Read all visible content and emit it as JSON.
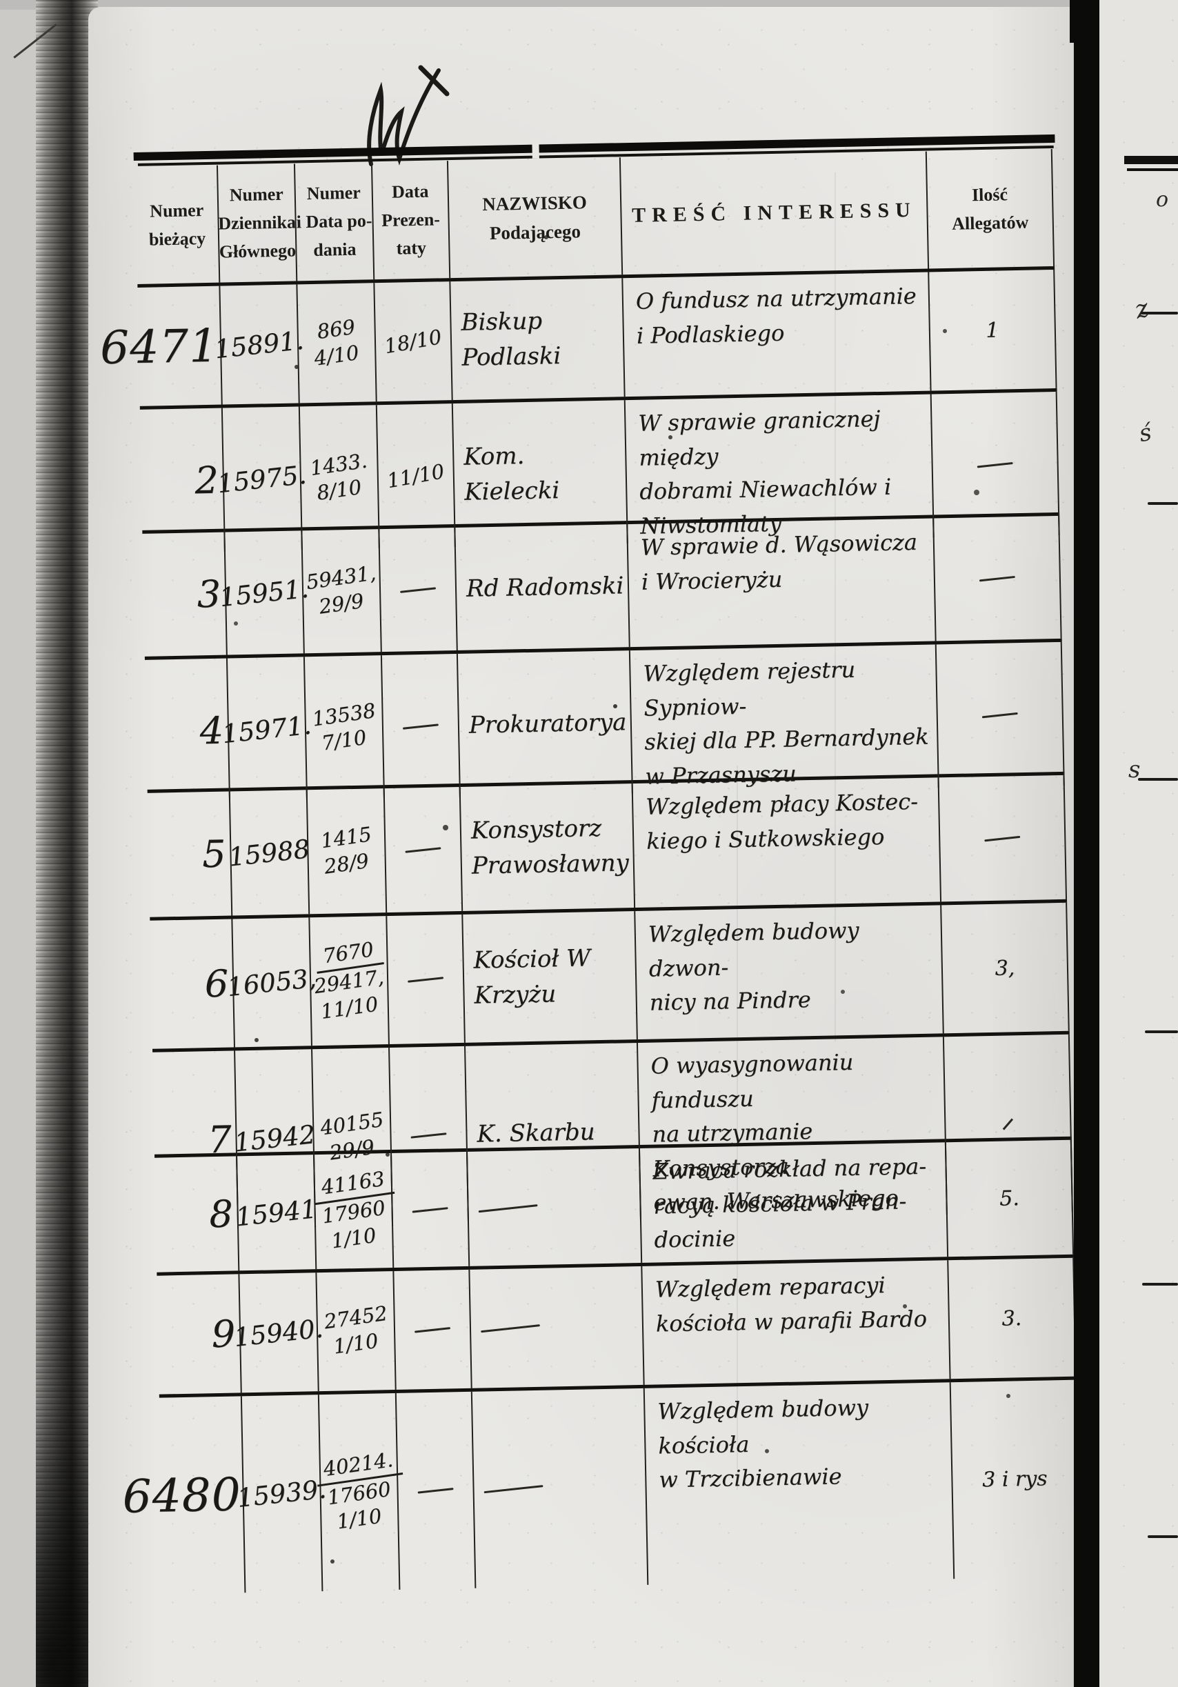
{
  "marks": {
    "paraph_mark": "handwritten-W-flourish"
  },
  "table": {
    "header": {
      "c1": [
        "Numer",
        "bieżący"
      ],
      "c2": [
        "Numer",
        "Dziennika",
        "Głównego"
      ],
      "c3": [
        "Numer",
        "i Data po-",
        "dania"
      ],
      "c4": [
        "Data",
        "Prezen-",
        "taty"
      ],
      "c5": [
        "NAZWISKO",
        "Podającego"
      ],
      "c6": [
        "TREŚĆ INTERESSU"
      ],
      "c7": [
        "Ilość",
        "Allegatów"
      ]
    },
    "rows": [
      {
        "no": "6471",
        "dziennik": "15891.",
        "podanie": [
          "869",
          "4/10"
        ],
        "prezentata": "18/10",
        "nazwisko": [
          "Biskup",
          "Podlaski"
        ],
        "tresc": [
          "O fundusz na utrzymanie",
          "i Podlaskiego"
        ],
        "alleg": "1"
      },
      {
        "no": "2",
        "dziennik": "15975.",
        "podanie": [
          "1433.",
          "8/10"
        ],
        "prezentata": "11/10",
        "nazwisko": [
          "Kom.",
          "Kielecki"
        ],
        "tresc": [
          "W sprawie granicznej między",
          "dobrami Niewachlów i",
          "Niwstomlaty"
        ],
        "alleg": "—"
      },
      {
        "no": "3",
        "dziennik": "15951.",
        "podanie": [
          "59431,",
          "29/9"
        ],
        "prezentata": "—",
        "nazwisko": [
          "Rd Radomski"
        ],
        "tresc": [
          "W sprawie d. Wąsowicza",
          "i Wrocieryżu"
        ],
        "alleg": "—"
      },
      {
        "no": "4",
        "dziennik": "15971.",
        "podanie": [
          "13538",
          "7/10"
        ],
        "prezentata": "—",
        "nazwisko": [
          "Prokuratorya"
        ],
        "tresc": [
          "Względem rejestru Sypniow-",
          "skiej dla PP. Bernardynek",
          "w Przasnyszu"
        ],
        "alleg": "—"
      },
      {
        "no": "5",
        "dziennik": "15988",
        "podanie": [
          "1415",
          "28/9"
        ],
        "prezentata": "—",
        "nazwisko": [
          "Konsystorz",
          "Prawosławny"
        ],
        "tresc": [
          "Względem płacy Kostec-",
          "kiego i Sutkowskiego"
        ],
        "alleg": "—"
      },
      {
        "no": "6",
        "dziennik": "16053,",
        "podanie": [
          "7670",
          "29417,",
          "11/10"
        ],
        "prezentata": "—",
        "nazwisko": [
          "Kościoł W Krzyżu"
        ],
        "tresc": [
          "Względem budowy dzwon-",
          "nicy na Pindre"
        ],
        "alleg": "3,"
      },
      {
        "no": "7",
        "dziennik": "15942",
        "podanie": [
          "40155",
          "29/9"
        ],
        "prezentata": "—",
        "nazwisko": [
          "K. Skarbu"
        ],
        "tresc": [
          "O wyasygnowaniu funduszu",
          "na utrzymanie Konsystorza",
          "ewan. Warszawskiego"
        ],
        "alleg": "–"
      },
      {
        "no": "8",
        "dziennik": "15941",
        "podanie": [
          "41163",
          "17960",
          "1/10"
        ],
        "prezentata": "—",
        "nazwisko": [
          "—"
        ],
        "tresc": [
          "Zwraca rozkład na repa-",
          "racyą kościoła w Pran-",
          "docinie"
        ],
        "alleg": "5."
      },
      {
        "no": "9",
        "dziennik": "15940.",
        "podanie": [
          "27452",
          "1/10"
        ],
        "prezentata": "—",
        "nazwisko": [
          "—"
        ],
        "tresc": [
          "Względem reparacyi",
          "kościoła w parafii Bardo"
        ],
        "alleg": "3."
      },
      {
        "no": "6480",
        "dziennik": "15939.",
        "podanie": [
          "40214.",
          "17660",
          "1/10"
        ],
        "prezentata": "—",
        "nazwisko": [
          "—"
        ],
        "tresc": [
          "Względem budowy kościoła",
          "w Trzcibienawie"
        ],
        "alleg": "3 i rys"
      }
    ]
  },
  "sliver": {
    "header_fragment": "o",
    "mark1": "z",
    "mark2": "ś",
    "mark3": "s"
  }
}
